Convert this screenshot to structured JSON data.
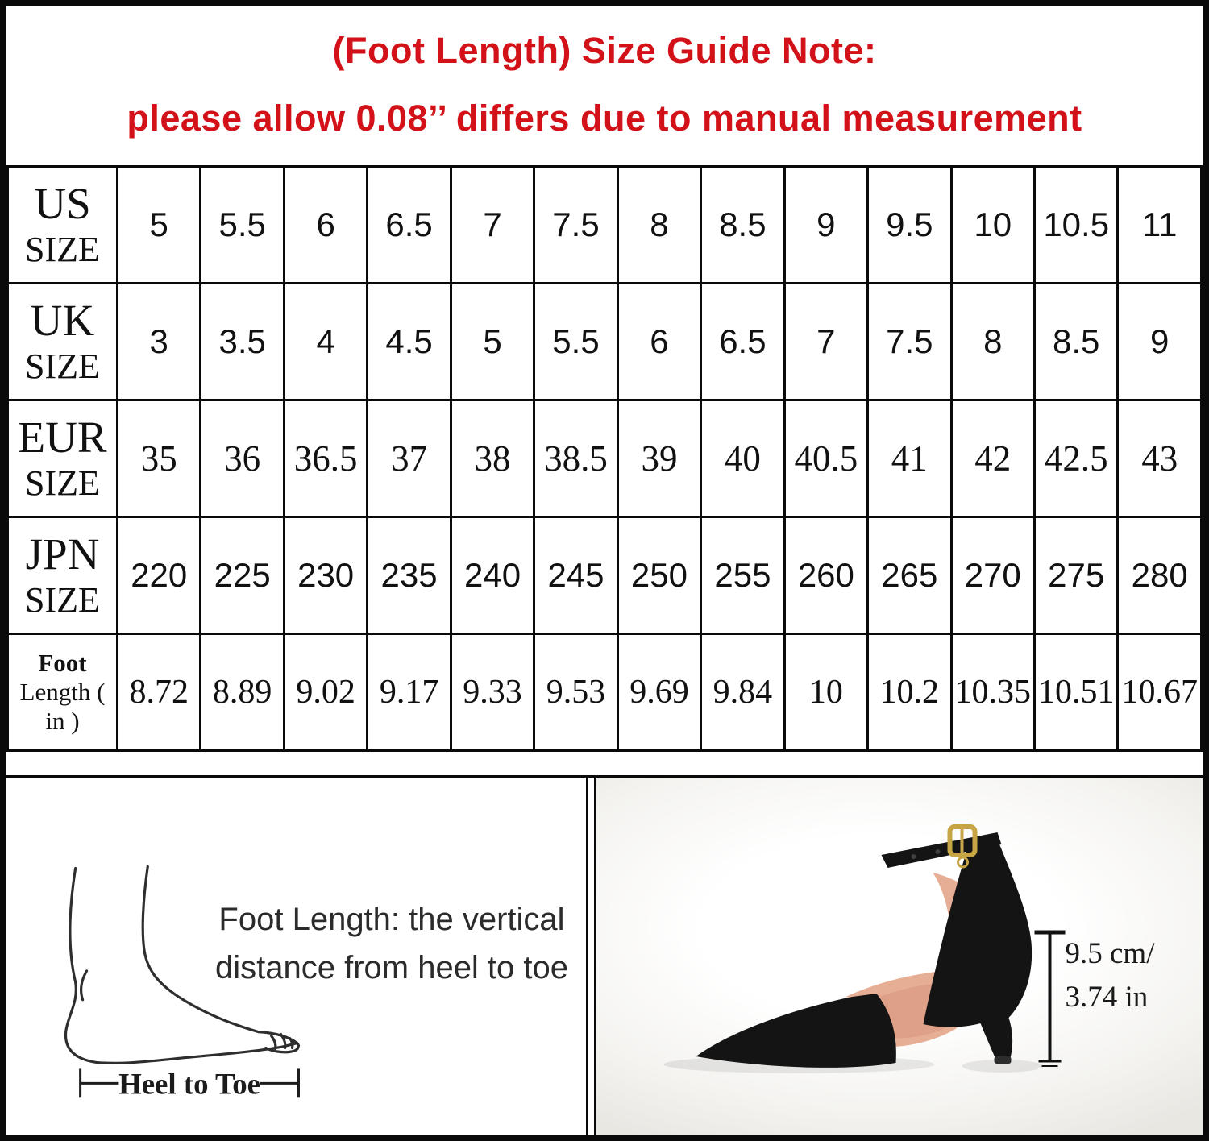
{
  "note": {
    "line1": "(Foot Length) Size Guide Note:",
    "line2": "please allow 0.08’’ differs due to manual measurement"
  },
  "size_table": {
    "rows": [
      {
        "id": "us",
        "label_lines": [
          "US",
          "SIZE"
        ],
        "values": [
          "5",
          "5.5",
          "6",
          "6.5",
          "7",
          "7.5",
          "8",
          "8.5",
          "9",
          "9.5",
          "10",
          "10.5",
          "11"
        ]
      },
      {
        "id": "uk",
        "label_lines": [
          "UK",
          "SIZE"
        ],
        "values": [
          "3",
          "3.5",
          "4",
          "4.5",
          "5",
          "5.5",
          "6",
          "6.5",
          "7",
          "7.5",
          "8",
          "8.5",
          "9"
        ]
      },
      {
        "id": "eur",
        "label_lines": [
          "EUR",
          "SIZE"
        ],
        "values": [
          "35",
          "36",
          "36.5",
          "37",
          "38",
          "38.5",
          "39",
          "40",
          "40.5",
          "41",
          "42",
          "42.5",
          "43"
        ]
      },
      {
        "id": "jpn",
        "label_lines": [
          "JPN",
          "SIZE"
        ],
        "values": [
          "220",
          "225",
          "230",
          "235",
          "240",
          "245",
          "250",
          "255",
          "260",
          "265",
          "270",
          "275",
          "280"
        ]
      },
      {
        "id": "foot_length",
        "label_lines": [
          "Foot",
          "Length ( in )"
        ],
        "values": [
          "8.72",
          "8.89",
          "9.02",
          "9.17",
          "9.33",
          "9.53",
          "9.69",
          "9.84",
          "10",
          "10.2",
          "10.35",
          "10.51",
          "10.67"
        ]
      }
    ]
  },
  "foot_diagram": {
    "description_line1": "Foot Length: the vertical",
    "description_line2": "distance from heel to toe",
    "dimension_label": "Heel to Toe"
  },
  "shoe_photo": {
    "heel_height_line1": "9.5 cm/",
    "heel_height_line2": "3.74 in"
  },
  "colors": {
    "note_red": "#d31118",
    "border_black": "#0a0a0a",
    "photo_background": "#f4f3f0",
    "insole_pink": "#e7ae96",
    "buckle_gold": "#c8a544"
  },
  "chart_data": {
    "type": "table",
    "title": "(Foot Length) Size Guide Note: please allow 0.08’’ differs due to manual measurement",
    "row_headers": [
      "US SIZE",
      "UK SIZE",
      "EUR SIZE",
      "JPN SIZE",
      "Foot Length ( in )"
    ],
    "rows": [
      [
        "5",
        "5.5",
        "6",
        "6.5",
        "7",
        "7.5",
        "8",
        "8.5",
        "9",
        "9.5",
        "10",
        "10.5",
        "11"
      ],
      [
        "3",
        "3.5",
        "4",
        "4.5",
        "5",
        "5.5",
        "6",
        "6.5",
        "7",
        "7.5",
        "8",
        "8.5",
        "9"
      ],
      [
        "35",
        "36",
        "36.5",
        "37",
        "38",
        "38.5",
        "39",
        "40",
        "40.5",
        "41",
        "42",
        "42.5",
        "43"
      ],
      [
        "220",
        "225",
        "230",
        "235",
        "240",
        "245",
        "250",
        "255",
        "260",
        "265",
        "270",
        "275",
        "280"
      ],
      [
        "8.72",
        "8.89",
        "9.02",
        "9.17",
        "9.33",
        "9.53",
        "9.69",
        "9.84",
        "10",
        "10.2",
        "10.35",
        "10.51",
        "10.67"
      ]
    ]
  }
}
